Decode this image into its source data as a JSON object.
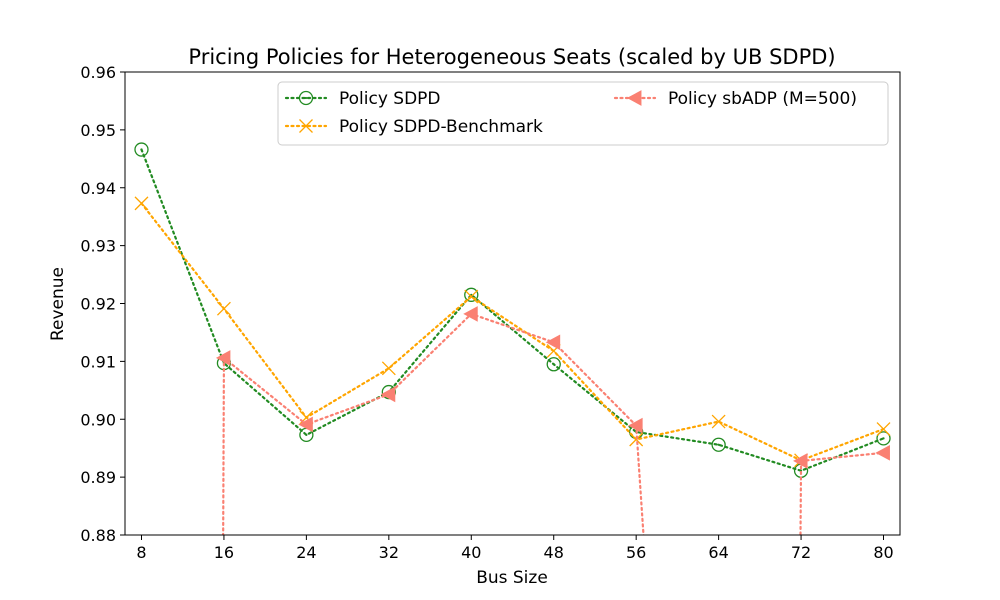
{
  "chart_data": {
    "type": "line",
    "title": "Pricing Policies for Heterogeneous Seats (scaled by UB SDPD)",
    "xlabel": "Bus Size",
    "ylabel": "Revenue",
    "x": [
      8,
      16,
      24,
      32,
      40,
      48,
      56,
      64,
      72,
      80
    ],
    "x_tick_labels": [
      "8",
      "16",
      "24",
      "32",
      "40",
      "48",
      "56",
      "64",
      "72",
      "80"
    ],
    "ylim": [
      0.88,
      0.96
    ],
    "y_ticks": [
      0.88,
      0.89,
      0.9,
      0.91,
      0.92,
      0.93,
      0.94,
      0.95,
      0.96
    ],
    "y_tick_labels": [
      "0.88",
      "0.89",
      "0.90",
      "0.91",
      "0.92",
      "0.93",
      "0.94",
      "0.95",
      "0.96"
    ],
    "grid": false,
    "legend_position": "top-right",
    "series": [
      {
        "name": "Policy SDPD",
        "color": "#228b22",
        "marker": "circle-dot",
        "values": [
          0.9466,
          0.9097,
          0.8973,
          0.9047,
          0.9215,
          0.9095,
          0.8978,
          0.8956,
          0.8911,
          0.8967
        ]
      },
      {
        "name": "Policy SDPD-Benchmark",
        "color": "#ffa500",
        "marker": "x",
        "values": [
          0.9373,
          0.9191,
          0.9003,
          0.9088,
          0.9212,
          0.9118,
          0.8965,
          0.8996,
          0.8929,
          0.8983
        ]
      },
      {
        "name": "Policy sbADP (M=500)",
        "color": "#fa8072",
        "marker": "triangle-left",
        "values": [
          null,
          0.9106,
          0.8991,
          0.9043,
          0.9182,
          0.9133,
          0.8989,
          null,
          0.8928,
          0.8942
        ],
        "offscale_drops": [
          {
            "from_x": 16,
            "to_x": 15.9
          },
          {
            "from_x": 56,
            "to_x": 57.1
          },
          {
            "from_x": 72,
            "to_x": 71.9
          }
        ]
      }
    ]
  }
}
